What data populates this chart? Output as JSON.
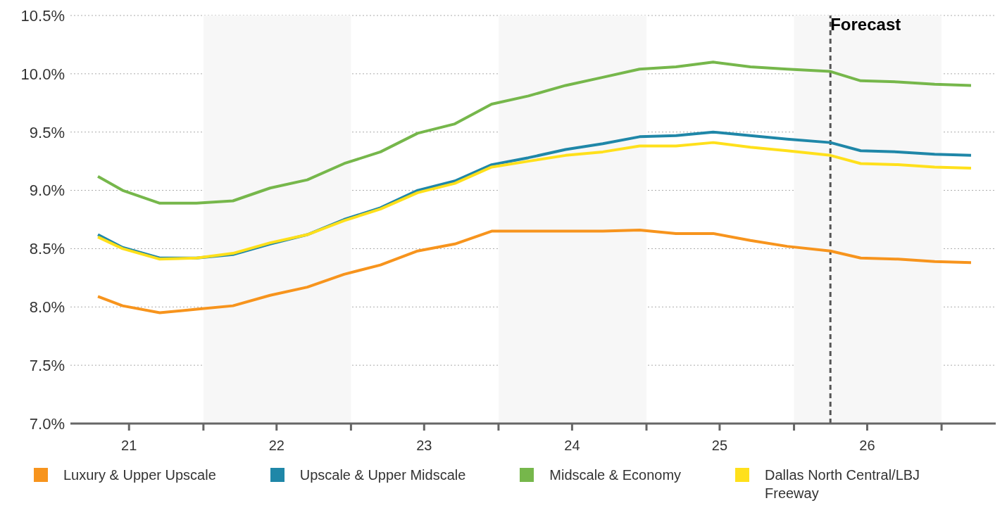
{
  "chart_data": {
    "type": "line",
    "x": [
      "2021-04-15",
      "2021-06-15",
      "2021-09-15",
      "2021-12-15",
      "2022-03-15",
      "2022-06-15",
      "2022-09-15",
      "2022-12-15",
      "2023-03-15",
      "2023-06-15",
      "2023-09-15",
      "2023-12-15",
      "2024-03-15",
      "2024-06-15",
      "2024-09-15",
      "2024-12-15",
      "2025-03-15",
      "2025-06-15",
      "2025-09-15",
      "2025-12-15",
      "2026-04-01",
      "2026-06-15",
      "2026-09-15",
      "2026-12-15",
      "2027-03-15"
    ],
    "series": [
      {
        "name": "Luxury & Upper Upscale",
        "color": "#f7941d",
        "values": [
          8.09,
          8.01,
          7.95,
          7.98,
          8.01,
          8.1,
          8.17,
          8.28,
          8.36,
          8.48,
          8.54,
          8.65,
          8.65,
          8.65,
          8.65,
          8.66,
          8.63,
          8.63,
          8.57,
          8.52,
          8.48,
          8.42,
          8.41,
          8.39,
          8.38
        ]
      },
      {
        "name": "Upscale & Upper Midscale",
        "color": "#1f87a8",
        "values": [
          8.62,
          8.51,
          8.42,
          8.42,
          8.45,
          8.54,
          8.62,
          8.75,
          8.85,
          9.0,
          9.08,
          9.22,
          9.28,
          9.35,
          9.4,
          9.46,
          9.47,
          9.5,
          9.47,
          9.44,
          9.41,
          9.34,
          9.33,
          9.31,
          9.3
        ]
      },
      {
        "name": "Midscale & Economy",
        "color": "#76b74b",
        "values": [
          9.12,
          9.0,
          8.89,
          8.89,
          8.91,
          9.02,
          9.09,
          9.23,
          9.33,
          9.49,
          9.57,
          9.74,
          9.81,
          9.9,
          9.97,
          10.04,
          10.06,
          10.1,
          10.06,
          10.04,
          10.02,
          9.94,
          9.93,
          9.91,
          9.9
        ]
      },
      {
        "name": "Dallas North Central/LBJ Freeway",
        "color": "#ffe01b",
        "values": [
          8.6,
          8.5,
          8.41,
          8.42,
          8.46,
          8.55,
          8.62,
          8.74,
          8.84,
          8.98,
          9.06,
          9.2,
          9.25,
          9.3,
          9.33,
          9.38,
          9.38,
          9.41,
          9.37,
          9.34,
          9.3,
          9.23,
          9.22,
          9.2,
          9.19
        ]
      }
    ],
    "xlim": [
      "2021-02-06",
      "2027-05-15"
    ],
    "xticks": [
      {
        "value": "2021-07-01",
        "label": "21"
      },
      {
        "value": "2022-01-01",
        "label": null
      },
      {
        "value": "2022-07-01",
        "label": "22"
      },
      {
        "value": "2023-01-01",
        "label": null
      },
      {
        "value": "2023-07-01",
        "label": "23"
      },
      {
        "value": "2024-01-01",
        "label": null
      },
      {
        "value": "2024-07-01",
        "label": "24"
      },
      {
        "value": "2025-01-01",
        "label": null
      },
      {
        "value": "2025-07-01",
        "label": "25"
      },
      {
        "value": "2026-01-01",
        "label": null
      },
      {
        "value": "2026-07-01",
        "label": "26"
      },
      {
        "value": "2027-01-01",
        "label": null
      }
    ],
    "ylim": [
      7,
      10.5
    ],
    "yticks": [
      {
        "value": 7,
        "label": "7.0%"
      },
      {
        "value": 7.5,
        "label": "7.5%"
      },
      {
        "value": 8,
        "label": "8.0%"
      },
      {
        "value": 8.5,
        "label": "8.5%"
      },
      {
        "value": 9,
        "label": "9.0%"
      },
      {
        "value": 9.5,
        "label": "9.5%"
      },
      {
        "value": 10,
        "label": "10.0%"
      },
      {
        "value": 10.5,
        "label": "10.5%"
      }
    ],
    "grid": "y",
    "legend": "bottom",
    "marker": "none",
    "line_style": "solid",
    "bands": [
      {
        "axis": "x",
        "from": "2022-01-01",
        "to": "2023-01-01",
        "color": "#f7f7f7"
      },
      {
        "axis": "x",
        "from": "2024-01-01",
        "to": "2025-01-01",
        "color": "#f7f7f7"
      },
      {
        "axis": "x",
        "from": "2026-01-01",
        "to": "2027-01-01",
        "color": "#f7f7f7"
      }
    ],
    "ref_lines": [
      {
        "axis": "x",
        "value": "2026-04-01",
        "label": "Forecast",
        "color": "#555555",
        "line_style": "dashed"
      }
    ]
  }
}
